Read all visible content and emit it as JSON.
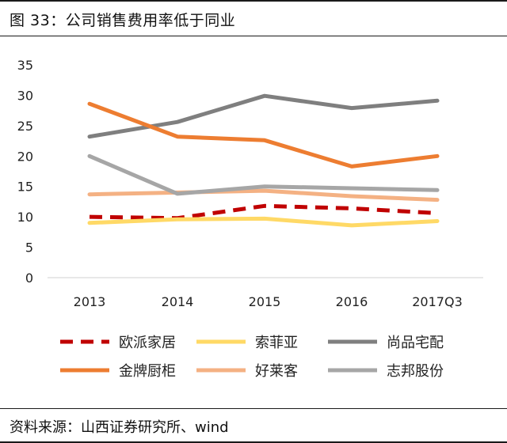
{
  "figure": {
    "title": "图 33：公司销售费用率低于同业",
    "source": "资料来源：山西证券研究所、wind"
  },
  "chart_data": {
    "type": "line",
    "categories": [
      "2013",
      "2014",
      "2015",
      "2016",
      "2017Q3"
    ],
    "ylim": [
      0,
      35
    ],
    "yticks": [
      0,
      5,
      10,
      15,
      20,
      25,
      30,
      35
    ],
    "grid": false,
    "legend_position": "bottom",
    "series": [
      {
        "name": "欧派家居",
        "color": "#c00000",
        "dashed": true,
        "values": [
          10.0,
          9.8,
          11.8,
          11.4,
          10.6
        ]
      },
      {
        "name": "索菲亚",
        "color": "#ffd966",
        "dashed": false,
        "values": [
          9.0,
          9.6,
          9.7,
          8.6,
          9.3
        ]
      },
      {
        "name": "尚品宅配",
        "color": "#7f7f7f",
        "dashed": false,
        "values": [
          23.2,
          25.6,
          29.9,
          27.9,
          29.1
        ]
      },
      {
        "name": "金牌厨柜",
        "color": "#ed7d31",
        "dashed": false,
        "values": [
          28.6,
          23.2,
          22.6,
          18.3,
          20.0
        ]
      },
      {
        "name": "好莱客",
        "color": "#f4b183",
        "dashed": false,
        "values": [
          13.7,
          14.0,
          14.3,
          13.4,
          12.8
        ]
      },
      {
        "name": "志邦股份",
        "color": "#a6a6a6",
        "dashed": false,
        "values": [
          20.0,
          13.8,
          15.0,
          14.7,
          14.4
        ]
      }
    ]
  }
}
